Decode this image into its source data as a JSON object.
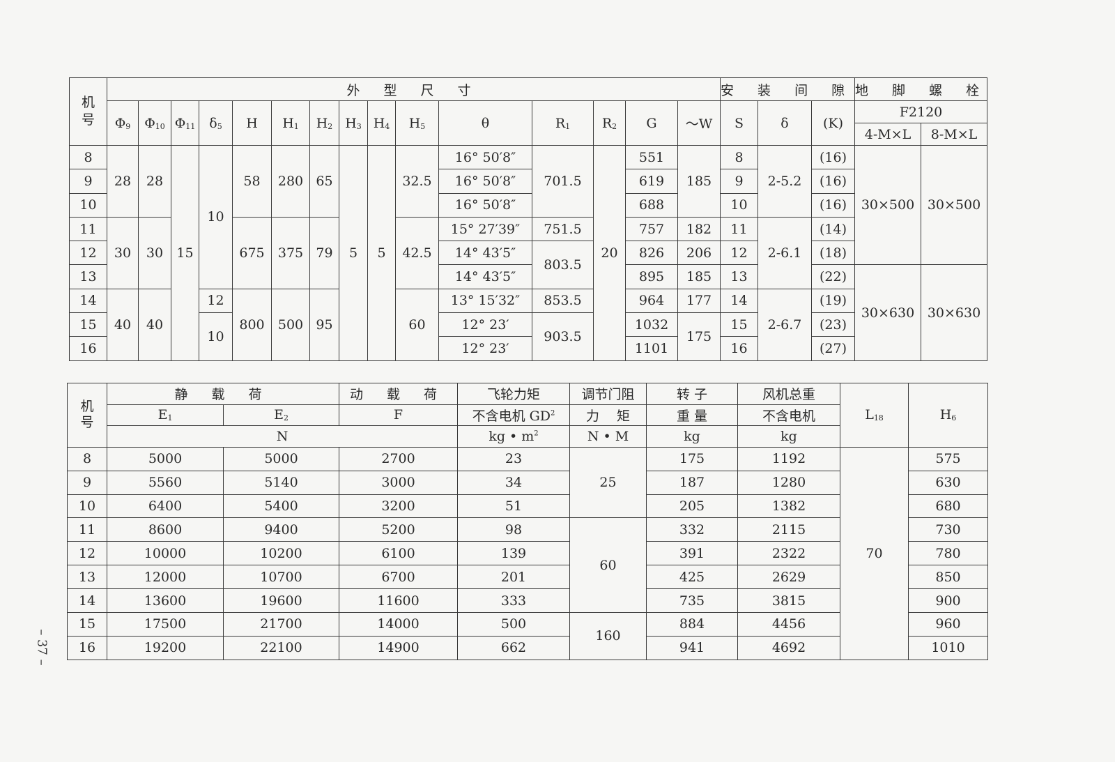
{
  "top_table": {
    "header": {
      "machine": "机号",
      "group_dims": "外 型 尺 寸",
      "group_gap": "安 装 间 隙",
      "group_bolt": "地 脚 螺 栓",
      "bolt_sub": "F2120",
      "columns": [
        {
          "key": "phi9",
          "base": "Φ",
          "sub": "9"
        },
        {
          "key": "phi10",
          "base": "Φ",
          "sub": "10"
        },
        {
          "key": "phi11",
          "base": "Φ",
          "sub": "11"
        },
        {
          "key": "delta5",
          "base": "δ",
          "sub": "5"
        },
        {
          "key": "H",
          "base": "H",
          "sub": ""
        },
        {
          "key": "H1",
          "base": "H",
          "sub": "1"
        },
        {
          "key": "H2",
          "base": "H",
          "sub": "2"
        },
        {
          "key": "H3",
          "base": "H",
          "sub": "3"
        },
        {
          "key": "H4",
          "base": "H",
          "sub": "4"
        },
        {
          "key": "H5",
          "base": "H",
          "sub": "5"
        },
        {
          "key": "theta",
          "base": "θ",
          "sub": ""
        },
        {
          "key": "R1",
          "base": "R",
          "sub": "1"
        },
        {
          "key": "R2",
          "base": "R",
          "sub": "2"
        },
        {
          "key": "G",
          "base": "G",
          "sub": ""
        },
        {
          "key": "W",
          "base": "～W",
          "sub": ""
        },
        {
          "key": "S",
          "base": "S",
          "sub": ""
        },
        {
          "key": "delta",
          "base": "δ",
          "sub": ""
        },
        {
          "key": "K",
          "base": "(K)",
          "sub": ""
        }
      ],
      "bolt_columns": [
        "4-M×L",
        "8-M×L"
      ]
    },
    "body": {
      "machine": [
        "8",
        "9",
        "10",
        "11",
        "12",
        "13",
        "14",
        "15",
        "16"
      ],
      "phi9": [
        "28",
        "30",
        "40"
      ],
      "phi10": [
        "28",
        "30",
        "40"
      ],
      "phi11": [
        "15"
      ],
      "delta5": [
        "10",
        "12",
        "10"
      ],
      "H": [
        "58",
        "675",
        "800"
      ],
      "H1": [
        "280",
        "375",
        "500"
      ],
      "H2": [
        "65",
        "79",
        "95"
      ],
      "H3": [
        "5"
      ],
      "H4": [
        "5"
      ],
      "H5": [
        "32.5",
        "42.5",
        "60"
      ],
      "theta": [
        "16° 50′8″",
        "16° 50′8″",
        "16° 50′8″",
        "15° 27′39″",
        "14° 43′5″",
        "14° 43′5″",
        "13° 15′32″",
        "12° 23′",
        "12° 23′"
      ],
      "R1": [
        "701.5",
        "751.5",
        "803.5",
        "853.5",
        "903.5"
      ],
      "R2": [
        "20"
      ],
      "G": [
        "551",
        "619",
        "688",
        "757",
        "826",
        "895",
        "964",
        "1032",
        "1101"
      ],
      "W": [
        "185",
        "182",
        "206",
        "185",
        "177",
        "175"
      ],
      "S": [
        "8",
        "9",
        "10",
        "11",
        "12",
        "13",
        "14",
        "15",
        "16"
      ],
      "delta": [
        "2-5.2",
        "2-6.1",
        "2-6.7"
      ],
      "K": [
        "(16)",
        "(16)",
        "(16)",
        "(14)",
        "(18)",
        "(22)",
        "(19)",
        "(23)",
        "(27)"
      ],
      "bolt4": [
        "30×500",
        "30×630"
      ],
      "bolt8": [
        "30×500",
        "30×630"
      ]
    }
  },
  "bottom_table": {
    "header": {
      "machine": "机号",
      "static_load": "静 载 荷",
      "dynamic_load": "动 载 荷",
      "flywheel_l1": "飞轮力矩",
      "flywheel_l2": "不含电机 GD",
      "flywheel_sup": "2",
      "flywheel_unit": "kg • m",
      "flywheel_unit_sup": "2",
      "damper_l1": "调节门阻",
      "damper_l2": "力　 矩",
      "damper_unit": "N • M",
      "rotor_l1": "转 子",
      "rotor_l2": "重 量",
      "rotor_unit": "kg",
      "total_l1": "风机总重",
      "total_l2": "不含电机",
      "total_unit": "kg",
      "E1_base": "E",
      "E1_sub": "1",
      "E2_base": "E",
      "E2_sub": "2",
      "F": "F",
      "load_unit": "N",
      "L18_base": "L",
      "L18_sub": "18",
      "H6_base": "H",
      "H6_sub": "6"
    },
    "body": {
      "machine": [
        "8",
        "9",
        "10",
        "11",
        "12",
        "13",
        "14",
        "15",
        "16"
      ],
      "E1": [
        "5000",
        "5560",
        "6400",
        "8600",
        "10000",
        "12000",
        "13600",
        "17500",
        "19200"
      ],
      "E2": [
        "5000",
        "5140",
        "5400",
        "9400",
        "10200",
        "10700",
        "19600",
        "21700",
        "22100"
      ],
      "F": [
        "2700",
        "3000",
        "3200",
        "5200",
        "6100",
        "6700",
        "11600",
        "14000",
        "14900"
      ],
      "GD2": [
        "23",
        "34",
        "51",
        "98",
        "139",
        "201",
        "333",
        "500",
        "662"
      ],
      "torque": [
        "25",
        "60",
        "160"
      ],
      "rotor": [
        "175",
        "187",
        "205",
        "332",
        "391",
        "425",
        "735",
        "884",
        "941"
      ],
      "total": [
        "1192",
        "1280",
        "1382",
        "2115",
        "2322",
        "2629",
        "3815",
        "4456",
        "4692"
      ],
      "L18": [
        "70"
      ],
      "H6": [
        "575",
        "630",
        "680",
        "730",
        "780",
        "850",
        "900",
        "960",
        "1010"
      ]
    }
  },
  "page_number": "– 37 –"
}
